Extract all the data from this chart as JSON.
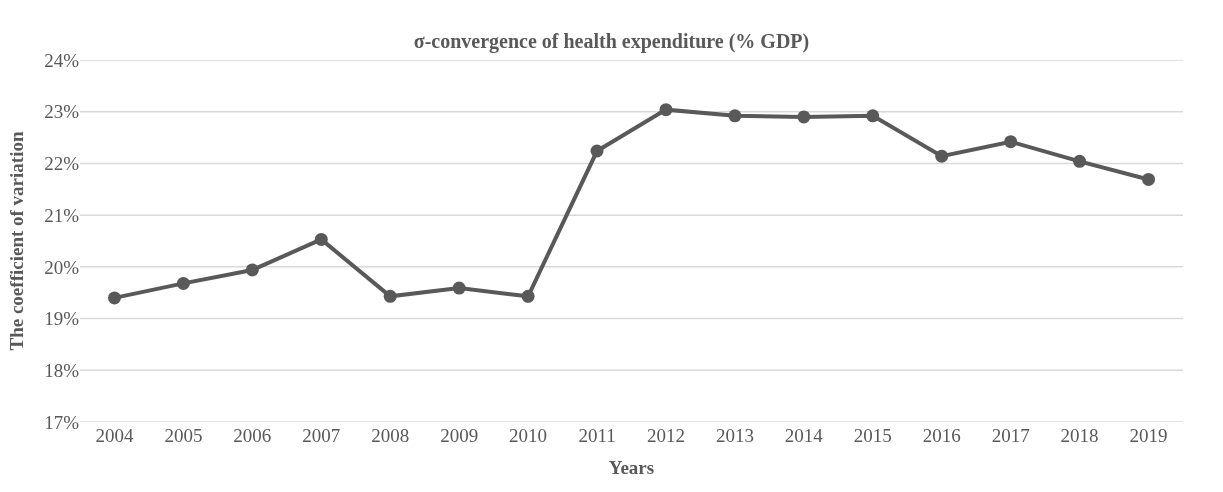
{
  "chart_data": {
    "type": "line",
    "title": "σ-convergence of health expenditure (% GDP)",
    "xlabel": "Years",
    "ylabel": "The coefficient of variation",
    "categories": [
      "2004",
      "2005",
      "2006",
      "2007",
      "2008",
      "2009",
      "2010",
      "2011",
      "2012",
      "2013",
      "2014",
      "2015",
      "2016",
      "2017",
      "2018",
      "2019"
    ],
    "series": [
      {
        "color": "#595959",
        "values": [
          19.4,
          19.68,
          19.94,
          20.53,
          19.43,
          19.59,
          19.43,
          22.24,
          23.04,
          22.92,
          22.9,
          22.92,
          22.14,
          22.42,
          22.04,
          21.69
        ]
      }
    ],
    "ylim": [
      17,
      24
    ],
    "yticks": [
      {
        "value": 17,
        "label": "17%"
      },
      {
        "value": 18,
        "label": "18%"
      },
      {
        "value": 19,
        "label": "19%"
      },
      {
        "value": 20,
        "label": "20%"
      },
      {
        "value": 21,
        "label": "21%"
      },
      {
        "value": 22,
        "label": "22%"
      },
      {
        "value": 23,
        "label": "23%"
      },
      {
        "value": 24,
        "label": "24%"
      }
    ],
    "grid": "y",
    "marker": "circle",
    "line_style": "solid"
  }
}
